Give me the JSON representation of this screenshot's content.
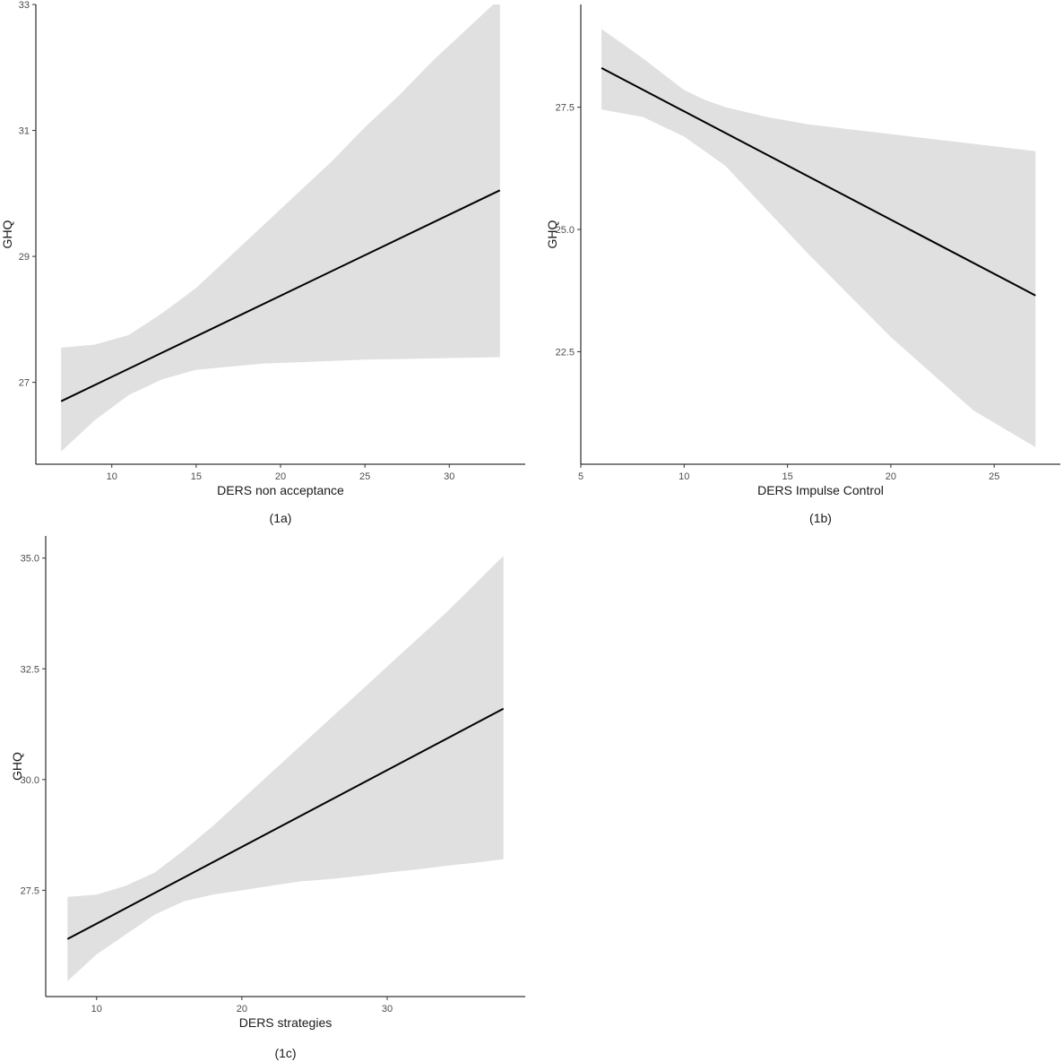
{
  "chart_data": [
    {
      "id": "1a",
      "type": "line",
      "caption": "(1a)",
      "xlabel": "DERS non acceptance",
      "ylabel": "GHQ",
      "xlim": [
        5.5,
        34.5
      ],
      "ylim": [
        25.7,
        33
      ],
      "xticks": [
        10,
        15,
        20,
        25,
        30
      ],
      "yticks": [
        27,
        29,
        31,
        33
      ],
      "grid": false,
      "series": [
        {
          "x": [
            7,
            33
          ],
          "y": [
            26.7,
            30.05
          ],
          "ci_x": [
            7,
            9,
            11,
            13,
            15,
            17,
            19,
            21,
            23,
            25,
            27,
            29,
            31,
            33
          ],
          "ci_lower": [
            25.9,
            26.4,
            26.8,
            27.05,
            27.2,
            27.25,
            27.3,
            27.32,
            27.34,
            27.36,
            27.37,
            27.38,
            27.39,
            27.4
          ],
          "ci_upper": [
            27.55,
            27.6,
            27.75,
            28.1,
            28.5,
            29.0,
            29.5,
            30.0,
            30.5,
            31.05,
            31.55,
            32.1,
            32.6,
            33.1
          ]
        }
      ]
    },
    {
      "id": "1b",
      "type": "line",
      "caption": "(1b)",
      "xlabel": "DERS Impulse Control",
      "ylabel": "GHQ",
      "xlim": [
        5,
        28.2
      ],
      "ylim": [
        20.2,
        29.6
      ],
      "xticks": [
        5,
        10,
        15,
        20,
        25
      ],
      "yticks": [
        22.5,
        25.0,
        27.5
      ],
      "ytick_labels": [
        "22.5",
        "25.0",
        "27.5"
      ],
      "grid": false,
      "series": [
        {
          "x": [
            6,
            27
          ],
          "y": [
            28.3,
            23.65
          ],
          "ci_x": [
            6,
            8,
            10,
            11,
            12,
            14,
            16,
            18,
            20,
            22,
            24,
            27
          ],
          "ci_lower": [
            27.45,
            27.3,
            26.9,
            26.6,
            26.3,
            25.4,
            24.5,
            23.65,
            22.8,
            22.05,
            21.3,
            20.55
          ],
          "ci_upper": [
            29.1,
            28.5,
            27.85,
            27.65,
            27.5,
            27.3,
            27.15,
            27.05,
            26.95,
            26.85,
            26.75,
            26.6
          ]
        }
      ]
    },
    {
      "id": "1c",
      "type": "line",
      "caption": "(1c)",
      "xlabel": "DERS strategies",
      "ylabel": "GHQ",
      "xlim": [
        6.5,
        39.5
      ],
      "ylim": [
        25.1,
        35.5
      ],
      "xticks": [
        10,
        20,
        30
      ],
      "yticks": [
        27.5,
        30.0,
        32.5,
        35.0
      ],
      "ytick_labels": [
        "27.5",
        "30.0",
        "32.5",
        "35.0"
      ],
      "grid": false,
      "series": [
        {
          "x": [
            8,
            38
          ],
          "y": [
            26.4,
            31.6
          ],
          "ci_x": [
            8,
            10,
            12,
            14,
            16,
            18,
            20,
            22,
            24,
            26,
            28,
            30,
            32,
            34,
            36,
            38
          ],
          "ci_lower": [
            25.45,
            26.05,
            26.5,
            26.95,
            27.25,
            27.4,
            27.5,
            27.6,
            27.7,
            27.75,
            27.82,
            27.9,
            27.97,
            28.05,
            28.12,
            28.2
          ],
          "ci_upper": [
            27.35,
            27.4,
            27.6,
            27.9,
            28.4,
            28.95,
            29.55,
            30.15,
            30.75,
            31.35,
            31.95,
            32.55,
            33.15,
            33.75,
            34.4,
            35.05
          ]
        }
      ]
    }
  ]
}
